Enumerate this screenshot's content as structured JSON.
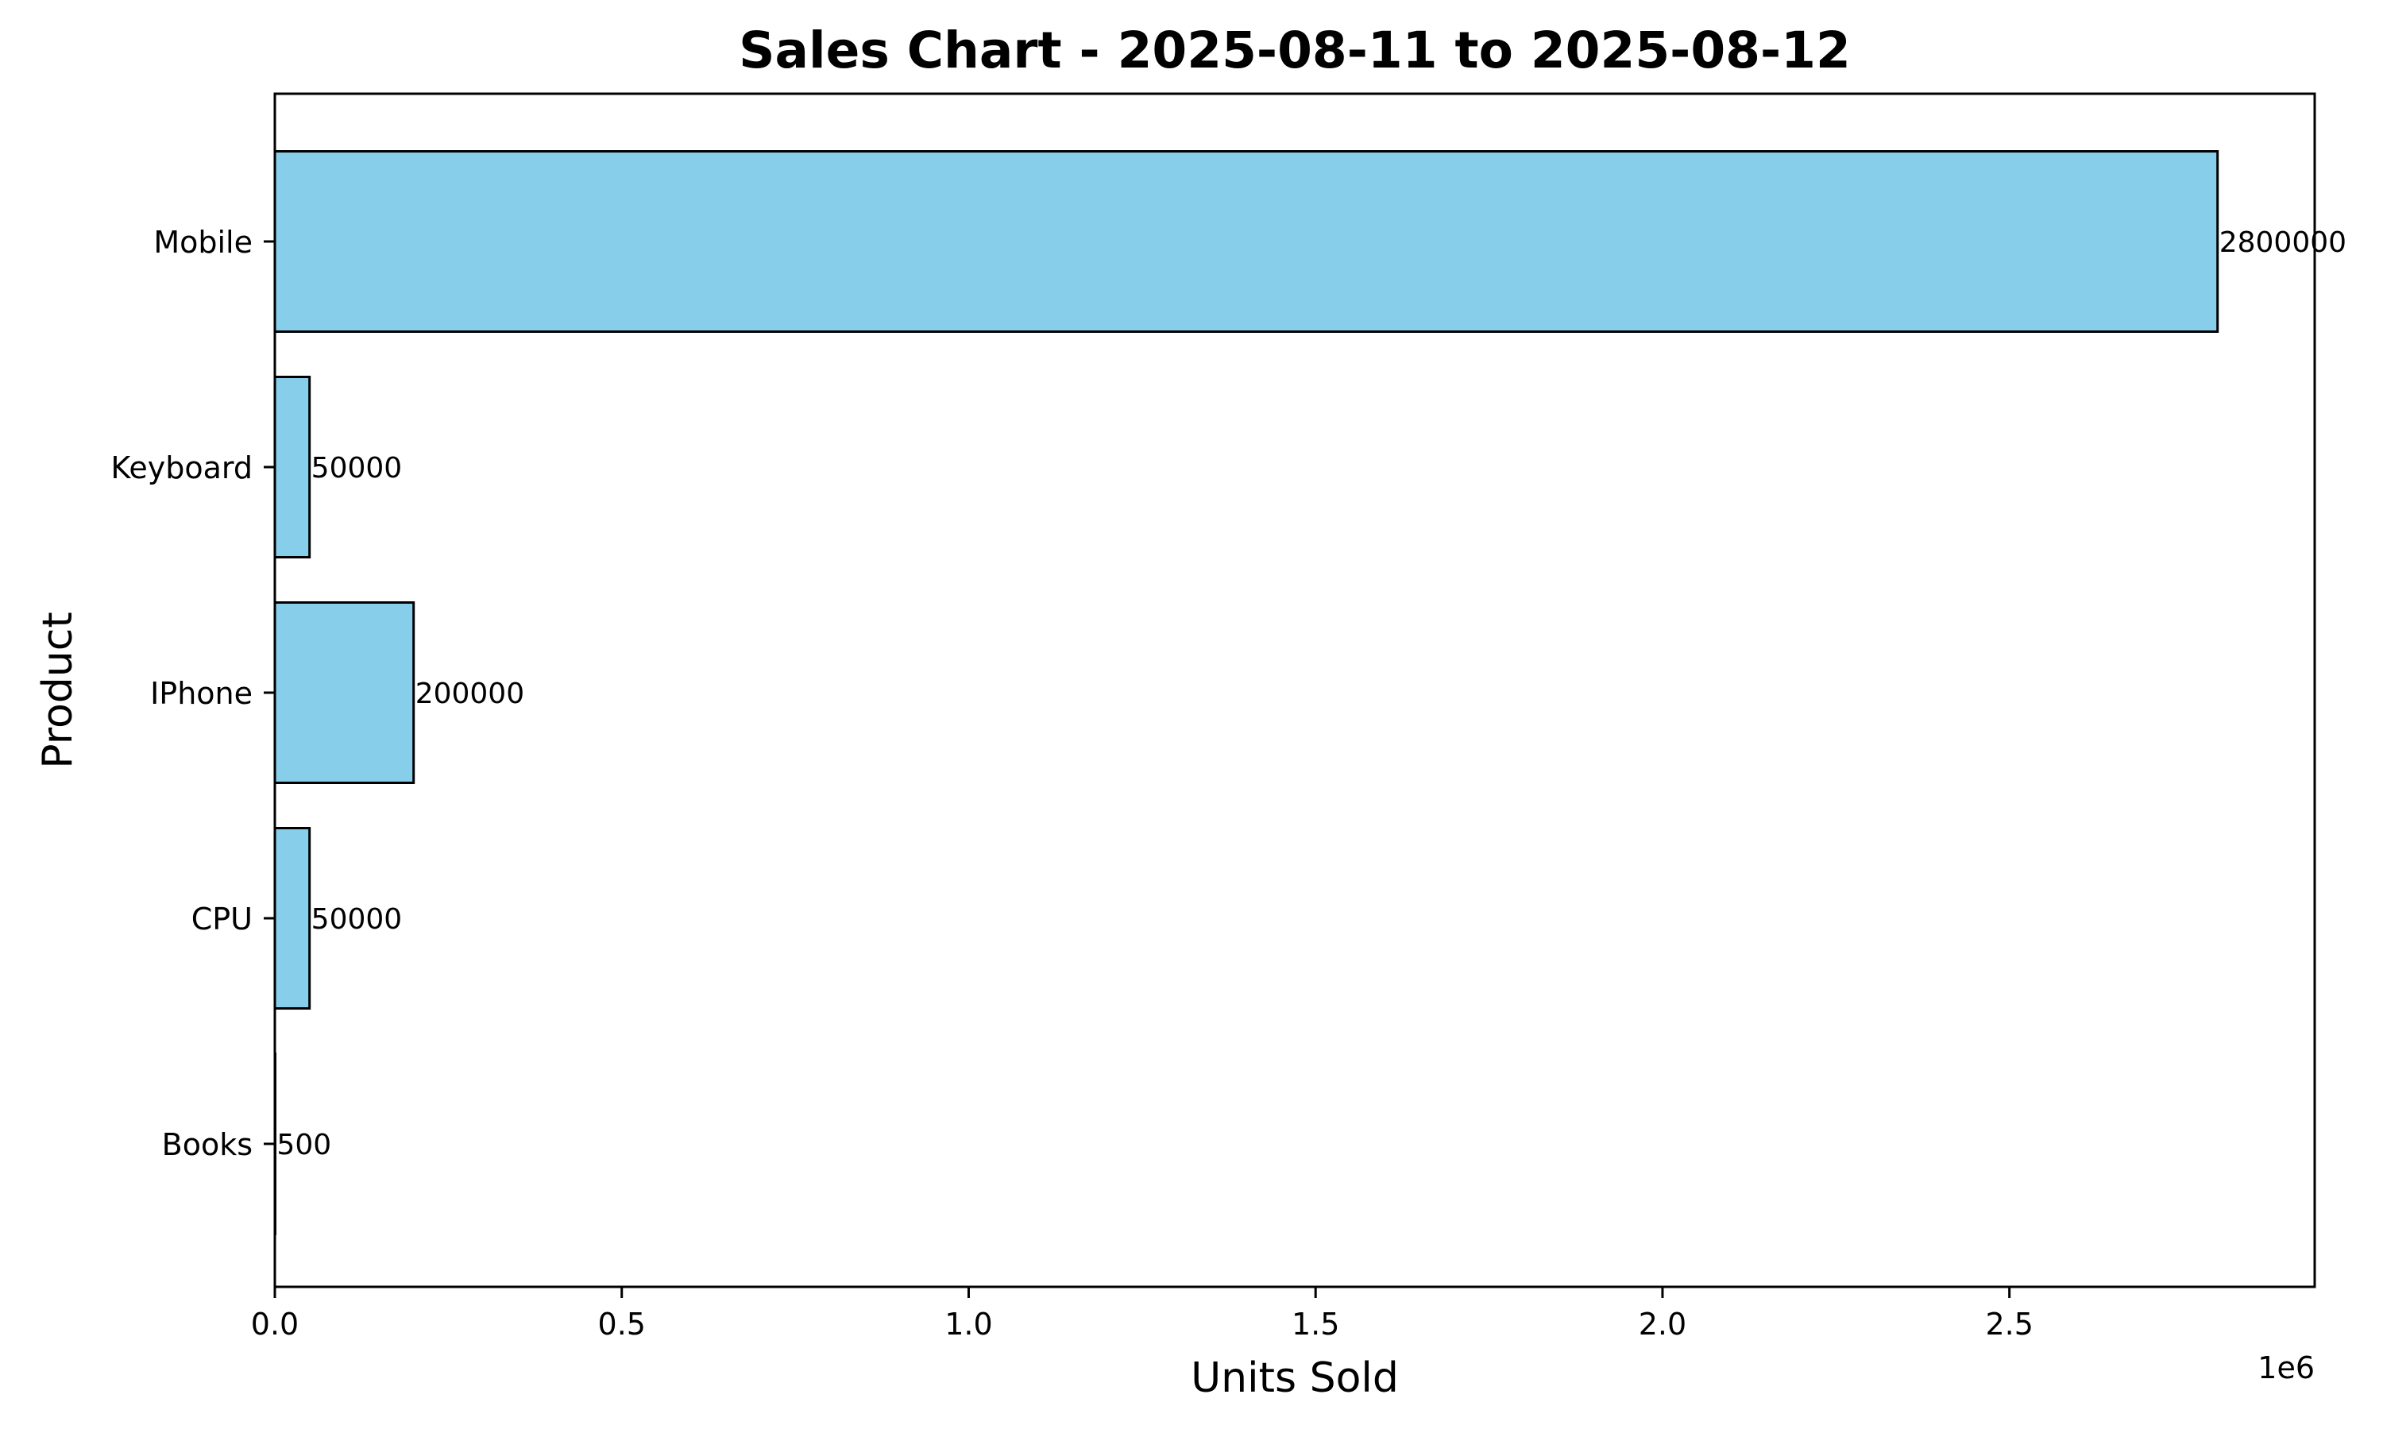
{
  "chart_data": {
    "type": "bar",
    "orientation": "horizontal",
    "title": "Sales Chart - 2025-08-11 to 2025-08-12",
    "xlabel": "Units Sold",
    "ylabel": "Product",
    "x_offset_text": "1e6",
    "categories": [
      "Books",
      "CPU",
      "IPhone",
      "Keyboard",
      "Mobile"
    ],
    "values": [
      500,
      50000,
      200000,
      50000,
      2800000
    ],
    "data_labels": [
      "500",
      "50000",
      "200000",
      "50000",
      "2800000"
    ],
    "xlim": [
      0,
      2940000
    ],
    "x_ticks": [
      0,
      500000,
      1000000,
      1500000,
      2000000,
      2500000
    ],
    "x_tick_labels": [
      "0.0",
      "0.5",
      "1.0",
      "1.5",
      "2.0",
      "2.5"
    ],
    "grid": false,
    "colors": {
      "bar_fill": "#87CEEB",
      "bar_edge": "#000000",
      "axes": "#000000",
      "text": "#000000",
      "background": "#ffffff"
    }
  }
}
